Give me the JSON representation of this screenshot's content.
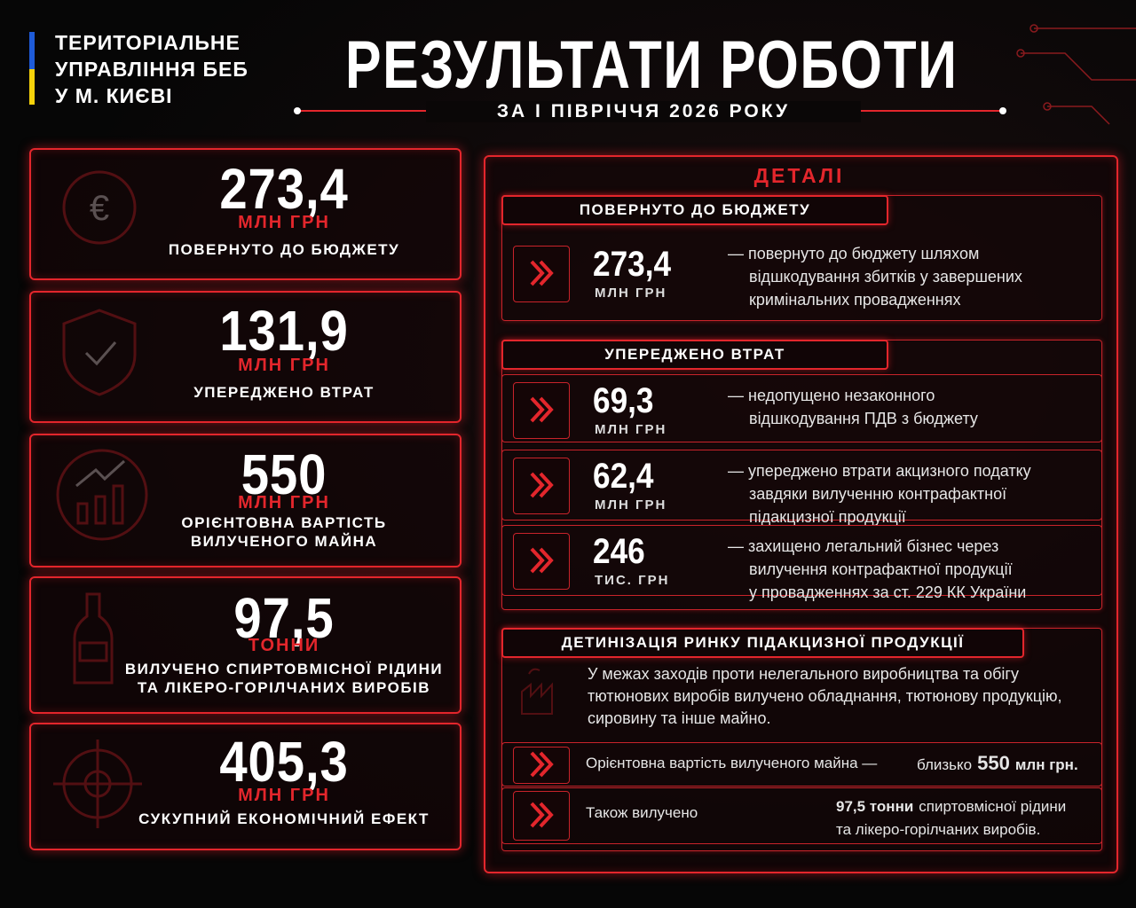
{
  "header": {
    "org": [
      "ТЕРИТОРІАЛЬНЕ",
      "УПРАВЛІННЯ БЕБ",
      "У М. КИЄВІ"
    ],
    "title": "РЕЗУЛЬТАТИ РОБОТИ",
    "subtitle": "ЗА І ПІВРІЧЧЯ 2026 РОКУ"
  },
  "cards": [
    {
      "value": "273,4",
      "unit": "МЛН ГРН",
      "label": [
        "ПОВЕРНУТО ДО БЮДЖЕТУ"
      ]
    },
    {
      "value": "131,9",
      "unit": "МЛН ГРН",
      "label": [
        "УПЕРЕДЖЕНО ВТРАТ"
      ]
    },
    {
      "value": "550",
      "unit": "МЛН ГРН",
      "label": [
        "ОРІЄНТОВНА ВАРТІСТЬ",
        "ВИЛУЧЕНОГО МАЙНА"
      ]
    },
    {
      "value": "97,5",
      "unit": "ТОННИ",
      "label": [
        "ВИЛУЧЕНО СПИРТОВМІСНОЇ РІДИНИ",
        "ТА ЛІКЕРО-ГОРІЛЧАНИХ ВИРОБІВ"
      ]
    },
    {
      "value": "405,3",
      "unit": "МЛН ГРН",
      "label": [
        "СУКУПНИЙ ЕКОНОМІЧНИЙ ЕФЕКТ"
      ]
    }
  ],
  "details": {
    "title": "ДЕТАЛІ",
    "sections": [
      {
        "title": "ПОВЕРНУТО ДО БЮДЖЕТУ",
        "items": [
          {
            "value": "273,4",
            "unit": "МЛН ГРН",
            "text": [
              "— повернуто до бюджету шляхом",
              "відшкодування збитків у завершених",
              "кримінальних провадженнях"
            ]
          }
        ]
      },
      {
        "title": "УПЕРЕДЖЕНО ВТРАТ",
        "items": [
          {
            "value": "69,3",
            "unit": "МЛН ГРН",
            "text": [
              "— недопущено незаконного",
              "відшкодування ПДВ з бюджету"
            ]
          },
          {
            "value": "62,4",
            "unit": "МЛН ГРН",
            "text": [
              "— упереджено втрати акцизного податку",
              "завдяки вилученню контрафактної",
              "підакцизної продукції"
            ]
          },
          {
            "value": "246",
            "unit": "ТИС. ГРН",
            "text": [
              "— захищено легальний бізнес через",
              "вилучення контрафактної продукції",
              "у провадженнях за ст. 229 КК України"
            ]
          }
        ]
      },
      {
        "title": "ДЕТИНІЗАЦІЯ РИНКУ ПІДАКЦИЗНОЇ ПРОДУКЦІЇ",
        "intro": [
          "У межах заходів проти нелегального виробництва та обігу",
          "тютюнових виробів вилучено обладнання, тютюнову продукцію,",
          "сировину та інше майно."
        ],
        "rows": [
          {
            "text": "Орієнтовна вартість вилученого майна —",
            "prefix": "близько",
            "bold": "550",
            "suffix": "млн грн."
          },
          {
            "text": "Також вилучено",
            "bold": "97,5 тонни",
            "suffix": "спиртовмісної рідини",
            "line2": "та лікеро-горілчаних виробів."
          }
        ]
      }
    ]
  }
}
